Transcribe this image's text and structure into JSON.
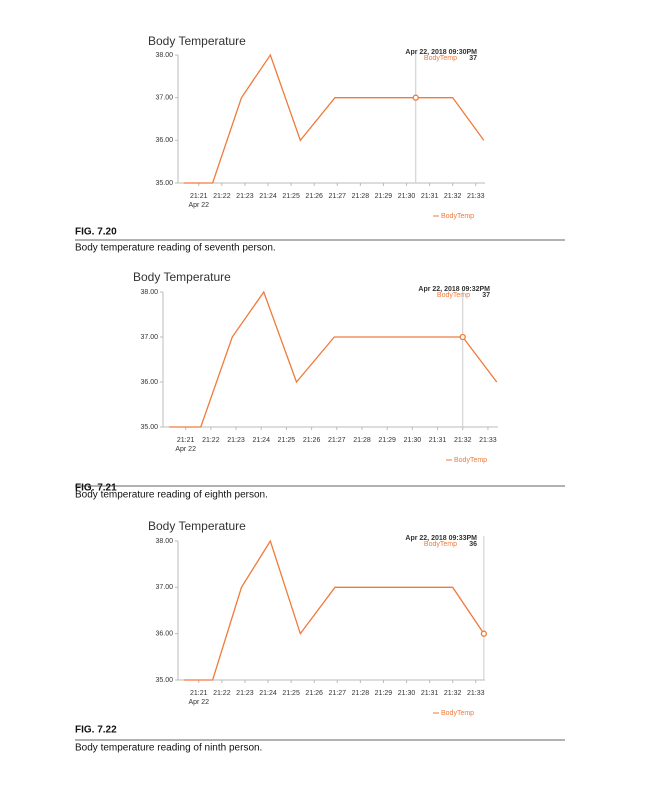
{
  "chart_data": [
    {
      "type": "line",
      "title": "Body Temperature",
      "date_label": "Apr 22",
      "x": [
        20.35,
        21.6,
        22.85,
        24.1,
        25.4,
        26.9,
        28.2,
        29.4,
        30.4,
        32.0,
        33.35
      ],
      "series": [
        {
          "name": "BodyTemp",
          "color": "#f07a3a",
          "values": [
            35,
            35,
            37,
            38,
            36,
            37,
            37,
            37,
            37,
            37,
            36
          ]
        }
      ],
      "xlim": [
        20.1,
        33.4
      ],
      "xticks": [
        {
          "value": 21,
          "label": "21:21"
        },
        {
          "value": 22,
          "label": "21:22"
        },
        {
          "value": 23,
          "label": "21:23"
        },
        {
          "value": 24,
          "label": "21:24"
        },
        {
          "value": 25,
          "label": "21:25"
        },
        {
          "value": 26,
          "label": "21:26"
        },
        {
          "value": 27,
          "label": "21:27"
        },
        {
          "value": 28,
          "label": "21:28"
        },
        {
          "value": 29,
          "label": "21:29"
        },
        {
          "value": 30,
          "label": "21:30"
        },
        {
          "value": 31,
          "label": "21:31"
        },
        {
          "value": 32,
          "label": "21:32"
        },
        {
          "value": 33,
          "label": "21:33"
        }
      ],
      "ylim": [
        35,
        38
      ],
      "yticks": [
        {
          "value": 35,
          "label": "35.00"
        },
        {
          "value": 36,
          "label": "36.00"
        },
        {
          "value": 37,
          "label": "37.00"
        },
        {
          "value": 38,
          "label": "38.00"
        }
      ],
      "legend": "bottom-right",
      "tooltip": {
        "title": "Apr 22, 2018 09:30PM",
        "x": 30.4,
        "value": 37
      }
    },
    {
      "type": "line",
      "title": "Body Temperature",
      "date_label": "Apr 22",
      "x": [
        20.35,
        21.6,
        22.85,
        24.1,
        25.4,
        26.9,
        28.2,
        29.4,
        30.4,
        32.0,
        33.35
      ],
      "series": [
        {
          "name": "BodyTemp",
          "color": "#f07a3a",
          "values": [
            35,
            35,
            37,
            38,
            36,
            37,
            37,
            37,
            37,
            37,
            36
          ]
        }
      ],
      "xlim": [
        20.1,
        33.4
      ],
      "xticks": [
        {
          "value": 21,
          "label": "21:21"
        },
        {
          "value": 22,
          "label": "21:22"
        },
        {
          "value": 23,
          "label": "21:23"
        },
        {
          "value": 24,
          "label": "21:24"
        },
        {
          "value": 25,
          "label": "21:25"
        },
        {
          "value": 26,
          "label": "21:26"
        },
        {
          "value": 27,
          "label": "21:27"
        },
        {
          "value": 28,
          "label": "21:28"
        },
        {
          "value": 29,
          "label": "21:29"
        },
        {
          "value": 30,
          "label": "21:30"
        },
        {
          "value": 31,
          "label": "21:31"
        },
        {
          "value": 32,
          "label": "21:32"
        },
        {
          "value": 33,
          "label": "21:33"
        }
      ],
      "ylim": [
        35,
        38
      ],
      "yticks": [
        {
          "value": 35,
          "label": "35.00"
        },
        {
          "value": 36,
          "label": "36.00"
        },
        {
          "value": 37,
          "label": "37.00"
        },
        {
          "value": 38,
          "label": "38.00"
        }
      ],
      "legend": "bottom-right",
      "tooltip": {
        "title": "Apr 22, 2018 09:32PM",
        "x": 32.0,
        "value": 37
      }
    },
    {
      "type": "line",
      "title": "Body Temperature",
      "date_label": "Apr 22",
      "x": [
        20.35,
        21.6,
        22.85,
        24.1,
        25.4,
        26.9,
        28.2,
        29.4,
        30.4,
        32.0,
        33.35
      ],
      "series": [
        {
          "name": "BodyTemp",
          "color": "#f07a3a",
          "values": [
            35,
            35,
            37,
            38,
            36,
            37,
            37,
            37,
            37,
            37,
            36
          ]
        }
      ],
      "xlim": [
        20.1,
        33.4
      ],
      "xticks": [
        {
          "value": 21,
          "label": "21:21"
        },
        {
          "value": 22,
          "label": "21:22"
        },
        {
          "value": 23,
          "label": "21:23"
        },
        {
          "value": 24,
          "label": "21:24"
        },
        {
          "value": 25,
          "label": "21:25"
        },
        {
          "value": 26,
          "label": "21:26"
        },
        {
          "value": 27,
          "label": "21:27"
        },
        {
          "value": 28,
          "label": "21:28"
        },
        {
          "value": 29,
          "label": "21:29"
        },
        {
          "value": 30,
          "label": "21:30"
        },
        {
          "value": 31,
          "label": "21:31"
        },
        {
          "value": 32,
          "label": "21:32"
        },
        {
          "value": 33,
          "label": "21:33"
        }
      ],
      "ylim": [
        35,
        38
      ],
      "yticks": [
        {
          "value": 35,
          "label": "35.00"
        },
        {
          "value": 36,
          "label": "36.00"
        },
        {
          "value": 37,
          "label": "37.00"
        },
        {
          "value": 38,
          "label": "38.00"
        }
      ],
      "legend": "bottom-right",
      "tooltip": {
        "title": "Apr 22, 2018 09:33PM",
        "x": 33.35,
        "value": 36
      }
    }
  ],
  "figures": [
    {
      "label": "FIG. 7.20",
      "caption": "Body temperature reading of seventh person."
    },
    {
      "label": "FIG. 7.21",
      "caption": "Body temperature reading of eighth person."
    },
    {
      "label": "FIG. 7.22",
      "caption": "Body temperature reading of ninth person."
    }
  ]
}
